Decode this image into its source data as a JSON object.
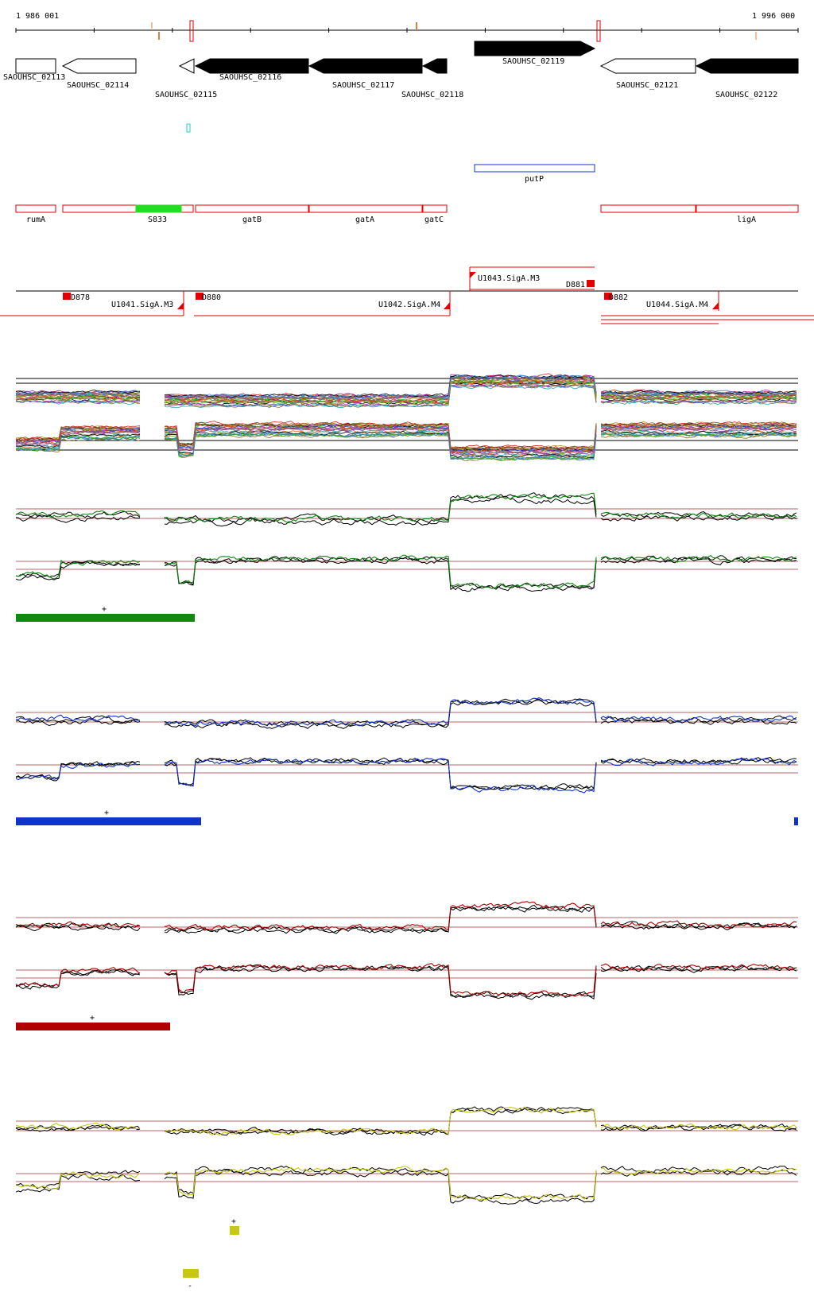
{
  "coordinates": {
    "start_label": "1 986 001",
    "end_label": "1 996 000"
  },
  "genes": [
    {
      "name": "SAOUHSC_02113",
      "strand": "+",
      "style": "open"
    },
    {
      "name": "SAOUHSC_02114",
      "strand": "-",
      "style": "open"
    },
    {
      "name": "SAOUHSC_02115",
      "strand": "-",
      "style": "open"
    },
    {
      "name": "SAOUHSC_02116",
      "strand": "-",
      "style": "filled"
    },
    {
      "name": "SAOUHSC_02117",
      "strand": "-",
      "style": "filled"
    },
    {
      "name": "SAOUHSC_02118",
      "strand": "-",
      "style": "filled"
    },
    {
      "name": "SAOUHSC_02119",
      "strand": "+",
      "style": "filled"
    },
    {
      "name": "SAOUHSC_02121",
      "strand": "-",
      "style": "open"
    },
    {
      "name": "SAOUHSC_02122",
      "strand": "-",
      "style": "filled"
    }
  ],
  "annotations": {
    "blue": [
      {
        "name": "putP"
      }
    ],
    "red": [
      {
        "name": "rumA"
      },
      {
        "name": "S833"
      },
      {
        "name": "gatB"
      },
      {
        "name": "gatA"
      },
      {
        "name": "gatC"
      },
      {
        "name": "ligA"
      }
    ]
  },
  "transcripts": {
    "labels": [
      "D878",
      "U1041.SigA.M3",
      "D880",
      "U1042.SigA.M4",
      "U1043.SigA.M3",
      "D881",
      "D882",
      "U1044.SigA.M4"
    ]
  },
  "panels": [
    {
      "name": "all-conditions",
      "color": "#000000",
      "multi": true
    },
    {
      "name": "condition-green",
      "color": "#118811",
      "sign": "+"
    },
    {
      "name": "condition-blue",
      "color": "#1133cc",
      "sign": "+"
    },
    {
      "name": "condition-red",
      "color": "#b00000",
      "sign": "+"
    },
    {
      "name": "condition-yellow",
      "color": "#c8c814",
      "sign": "+",
      "sign2": "-"
    }
  ],
  "colors": {
    "accent_red": "#e00000",
    "green_block": "#22dd22",
    "cyan_marker": "#22cccc",
    "threshold": "#a03030"
  }
}
